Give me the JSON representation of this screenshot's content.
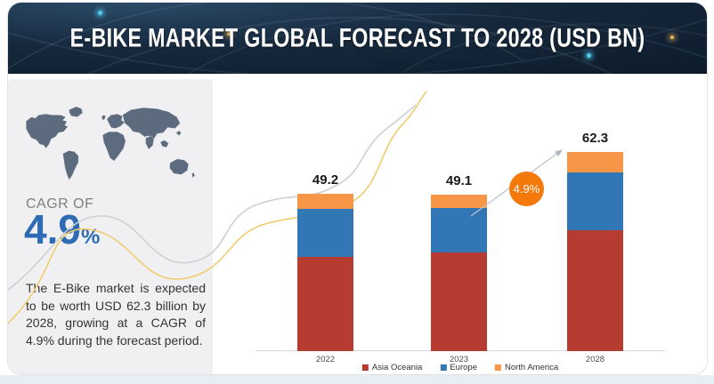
{
  "header": {
    "title": "E-BIKE MARKET GLOBAL FORECAST TO 2028 (USD BN)"
  },
  "sidebar": {
    "cagr_label": "CAGR OF",
    "cagr_value": "4.9",
    "cagr_unit": "%",
    "description": "The E-Bike market is expected to be worth USD 62.3 billion by 2028, growing at a CAGR of 4.9% during the forecast period."
  },
  "chart_data": {
    "type": "bar",
    "stacked": true,
    "categories": [
      "2022",
      "2023",
      "2028"
    ],
    "series": [
      {
        "name": "Asia Oceania",
        "color": "#b63b30",
        "values": [
          29.5,
          30.8,
          37.8
        ]
      },
      {
        "name": "Europe",
        "color": "#3277b5",
        "values": [
          15.1,
          13.9,
          18.1
        ]
      },
      {
        "name": "North America",
        "color": "#f79646",
        "values": [
          4.6,
          4.4,
          6.4
        ]
      }
    ],
    "totals": [
      49.2,
      49.1,
      62.3
    ],
    "total_labels": [
      "49.2",
      "49.1",
      "62.3"
    ],
    "annotation": {
      "label": "4.9%",
      "color": "#f2790a"
    },
    "legend_position": "bottom",
    "grid": false,
    "ylim": [
      0,
      65
    ]
  },
  "colors": {
    "header_bg": "#16293d",
    "panel_bg": "#f0f0f2",
    "map_fill": "#5d6b7e",
    "cagr_blue": "#2d6cb5",
    "wave_yellow": "#f1cc6f",
    "wave_gray": "#cdd0d4",
    "axis_line": "#dadada"
  }
}
